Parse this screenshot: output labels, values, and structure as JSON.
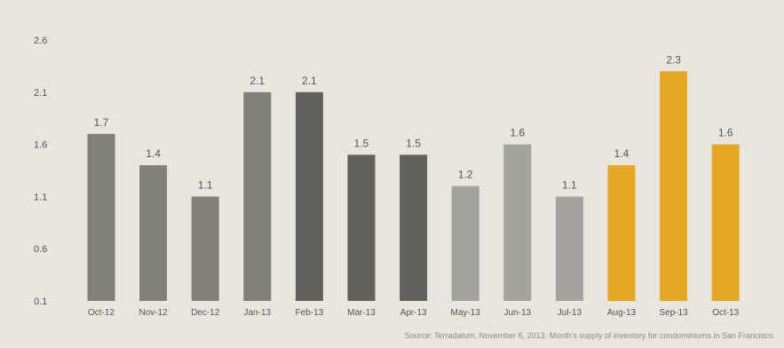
{
  "chart_data": {
    "type": "bar",
    "categories": [
      "Oct-12",
      "Nov-12",
      "Dec-12",
      "Jan-13",
      "Feb-13",
      "Mar-13",
      "Apr-13",
      "May-13",
      "Jun-13",
      "Jul-13",
      "Aug-13",
      "Sep-13",
      "Oct-13"
    ],
    "values": [
      1.7,
      1.4,
      1.1,
      2.1,
      2.1,
      1.5,
      1.5,
      1.2,
      1.6,
      1.1,
      1.4,
      2.3,
      1.6
    ],
    "value_labels": [
      "1.7",
      "1.4",
      "1.1",
      "2.1",
      "2.1",
      "1.5",
      "1.5",
      "1.2",
      "1.6",
      "1.1",
      "1.4",
      "2.3",
      "1.6"
    ],
    "bar_colors": [
      "#818079",
      "#818079",
      "#818079",
      "#818079",
      "#62625d",
      "#62625d",
      "#62625d",
      "#a4a39f",
      "#a4a39f",
      "#a4a39f",
      "#e4a823",
      "#e4a823",
      "#e4a823"
    ],
    "y_ticks": [
      "2.6",
      "2.1",
      "1.6",
      "1.1",
      "0.6",
      "0.1"
    ],
    "ylim": [
      0.1,
      2.6
    ],
    "title": "",
    "xlabel": "",
    "ylabel": "",
    "grid": false,
    "legend": "none"
  },
  "source_note": "Source: Terradatum,  November 6, 2013. Month's supply of inventory for condominiums in San Francisco."
}
